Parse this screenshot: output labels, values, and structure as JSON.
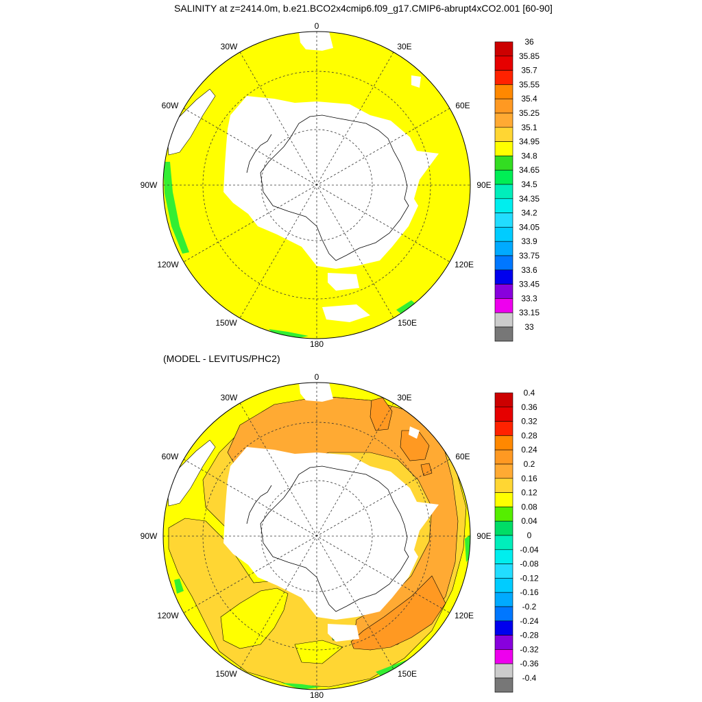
{
  "title": "SALINITY at z=2414.0m, b.e21.BCO2x4cmip6.f09_g17.CMIP6-abrupt4xCO2.001 [60-90]",
  "subtitle": "(MODEL - LEVITUS/PHC2)",
  "longitude_labels": {
    "0": "0",
    "30E": "30E",
    "60E": "60E",
    "90E": "90E",
    "120E": "120E",
    "150E": "150E",
    "180": "180",
    "150W": "150W",
    "120W": "120W",
    "90W": "90W",
    "60W": "60W",
    "30W": "30W"
  },
  "colors": {
    "land": "#ffffff",
    "top_field": "#ffff00",
    "top_coast": "#33ee33",
    "bottom_base": "#ffd633",
    "bottom_mid": "#ffaa33",
    "bottom_high": "#ff9922",
    "bottom_warm_edge": "#ffff00",
    "bottom_green": "#33ee33"
  },
  "colorbar_top": {
    "labels": [
      "36",
      "35.85",
      "35.7",
      "35.55",
      "35.4",
      "35.25",
      "35.1",
      "34.95",
      "34.8",
      "34.65",
      "34.5",
      "34.35",
      "34.2",
      "34.05",
      "33.9",
      "33.75",
      "33.6",
      "33.45",
      "33.3",
      "33.15",
      "33"
    ],
    "colors": [
      "#cc0000",
      "#e60000",
      "#ff2200",
      "#ff8800",
      "#ff9922",
      "#ffaa33",
      "#ffd633",
      "#ffff00",
      "#33dd22",
      "#00ee55",
      "#00eebb",
      "#00eeee",
      "#22ddff",
      "#00ccff",
      "#00aaff",
      "#0077ff",
      "#0000ee",
      "#8800dd",
      "#ee00ee",
      "#cccccc",
      "#777777"
    ]
  },
  "colorbar_bottom": {
    "labels": [
      "0.4",
      "0.36",
      "0.32",
      "0.28",
      "0.24",
      "0.2",
      "0.16",
      "0.12",
      "0.08",
      "0.04",
      "0",
      "-0.04",
      "-0.08",
      "-0.12",
      "-0.16",
      "-0.2",
      "-0.24",
      "-0.28",
      "-0.32",
      "-0.36",
      "-0.4"
    ],
    "colors": [
      "#cc0000",
      "#e60000",
      "#ff2200",
      "#ff8800",
      "#ff9922",
      "#ffaa33",
      "#ffd633",
      "#ffff00",
      "#55ee00",
      "#00dd66",
      "#00eebb",
      "#00eeee",
      "#22ddff",
      "#00ccff",
      "#00aaff",
      "#0077ff",
      "#0000ee",
      "#8800dd",
      "#ee00ee",
      "#cccccc",
      "#777777"
    ]
  }
}
